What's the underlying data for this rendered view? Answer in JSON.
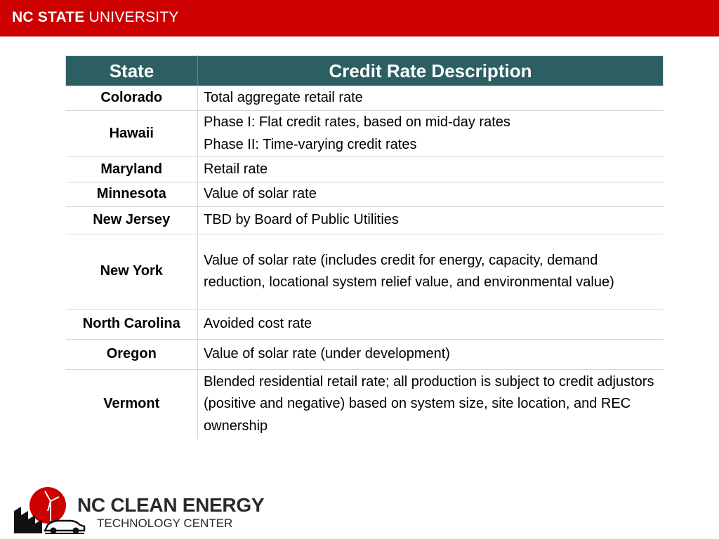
{
  "header": {
    "brand_bold": "NC STATE",
    "brand_thin": "UNIVERSITY"
  },
  "table": {
    "headers": [
      "State",
      "Credit Rate Description"
    ],
    "rows": [
      {
        "state": "Colorado",
        "desc": [
          "Total aggregate retail rate"
        ]
      },
      {
        "state": "Hawaii",
        "desc": [
          "Phase I: Flat credit rates, based on mid-day rates",
          "Phase II: Time-varying credit rates"
        ]
      },
      {
        "state": "Maryland",
        "desc": [
          "Retail rate"
        ]
      },
      {
        "state": "Minnesota",
        "desc": [
          "Value of solar rate"
        ]
      },
      {
        "state": "New Jersey",
        "desc": [
          "TBD by Board of Public Utilities"
        ]
      },
      {
        "state": "New York",
        "desc": [
          "Value of solar rate (includes credit for energy, capacity, demand reduction, locational system relief value, and environmental value)"
        ]
      },
      {
        "state": "North Carolina",
        "desc": [
          "Avoided cost rate"
        ]
      },
      {
        "state": "Oregon",
        "desc": [
          "Value of solar rate (under development)"
        ]
      },
      {
        "state": "Vermont",
        "desc": [
          "Blended residential retail rate; all production is subject to credit adjustors (positive and negative) based on system size, site location, and REC ownership"
        ]
      }
    ]
  },
  "footer_logo": {
    "line1": "NC CLEAN ENERGY",
    "line2": "TECHNOLOGY CENTER"
  },
  "colors": {
    "brand_red": "#cc0000",
    "header_teal": "#2b5f61"
  }
}
